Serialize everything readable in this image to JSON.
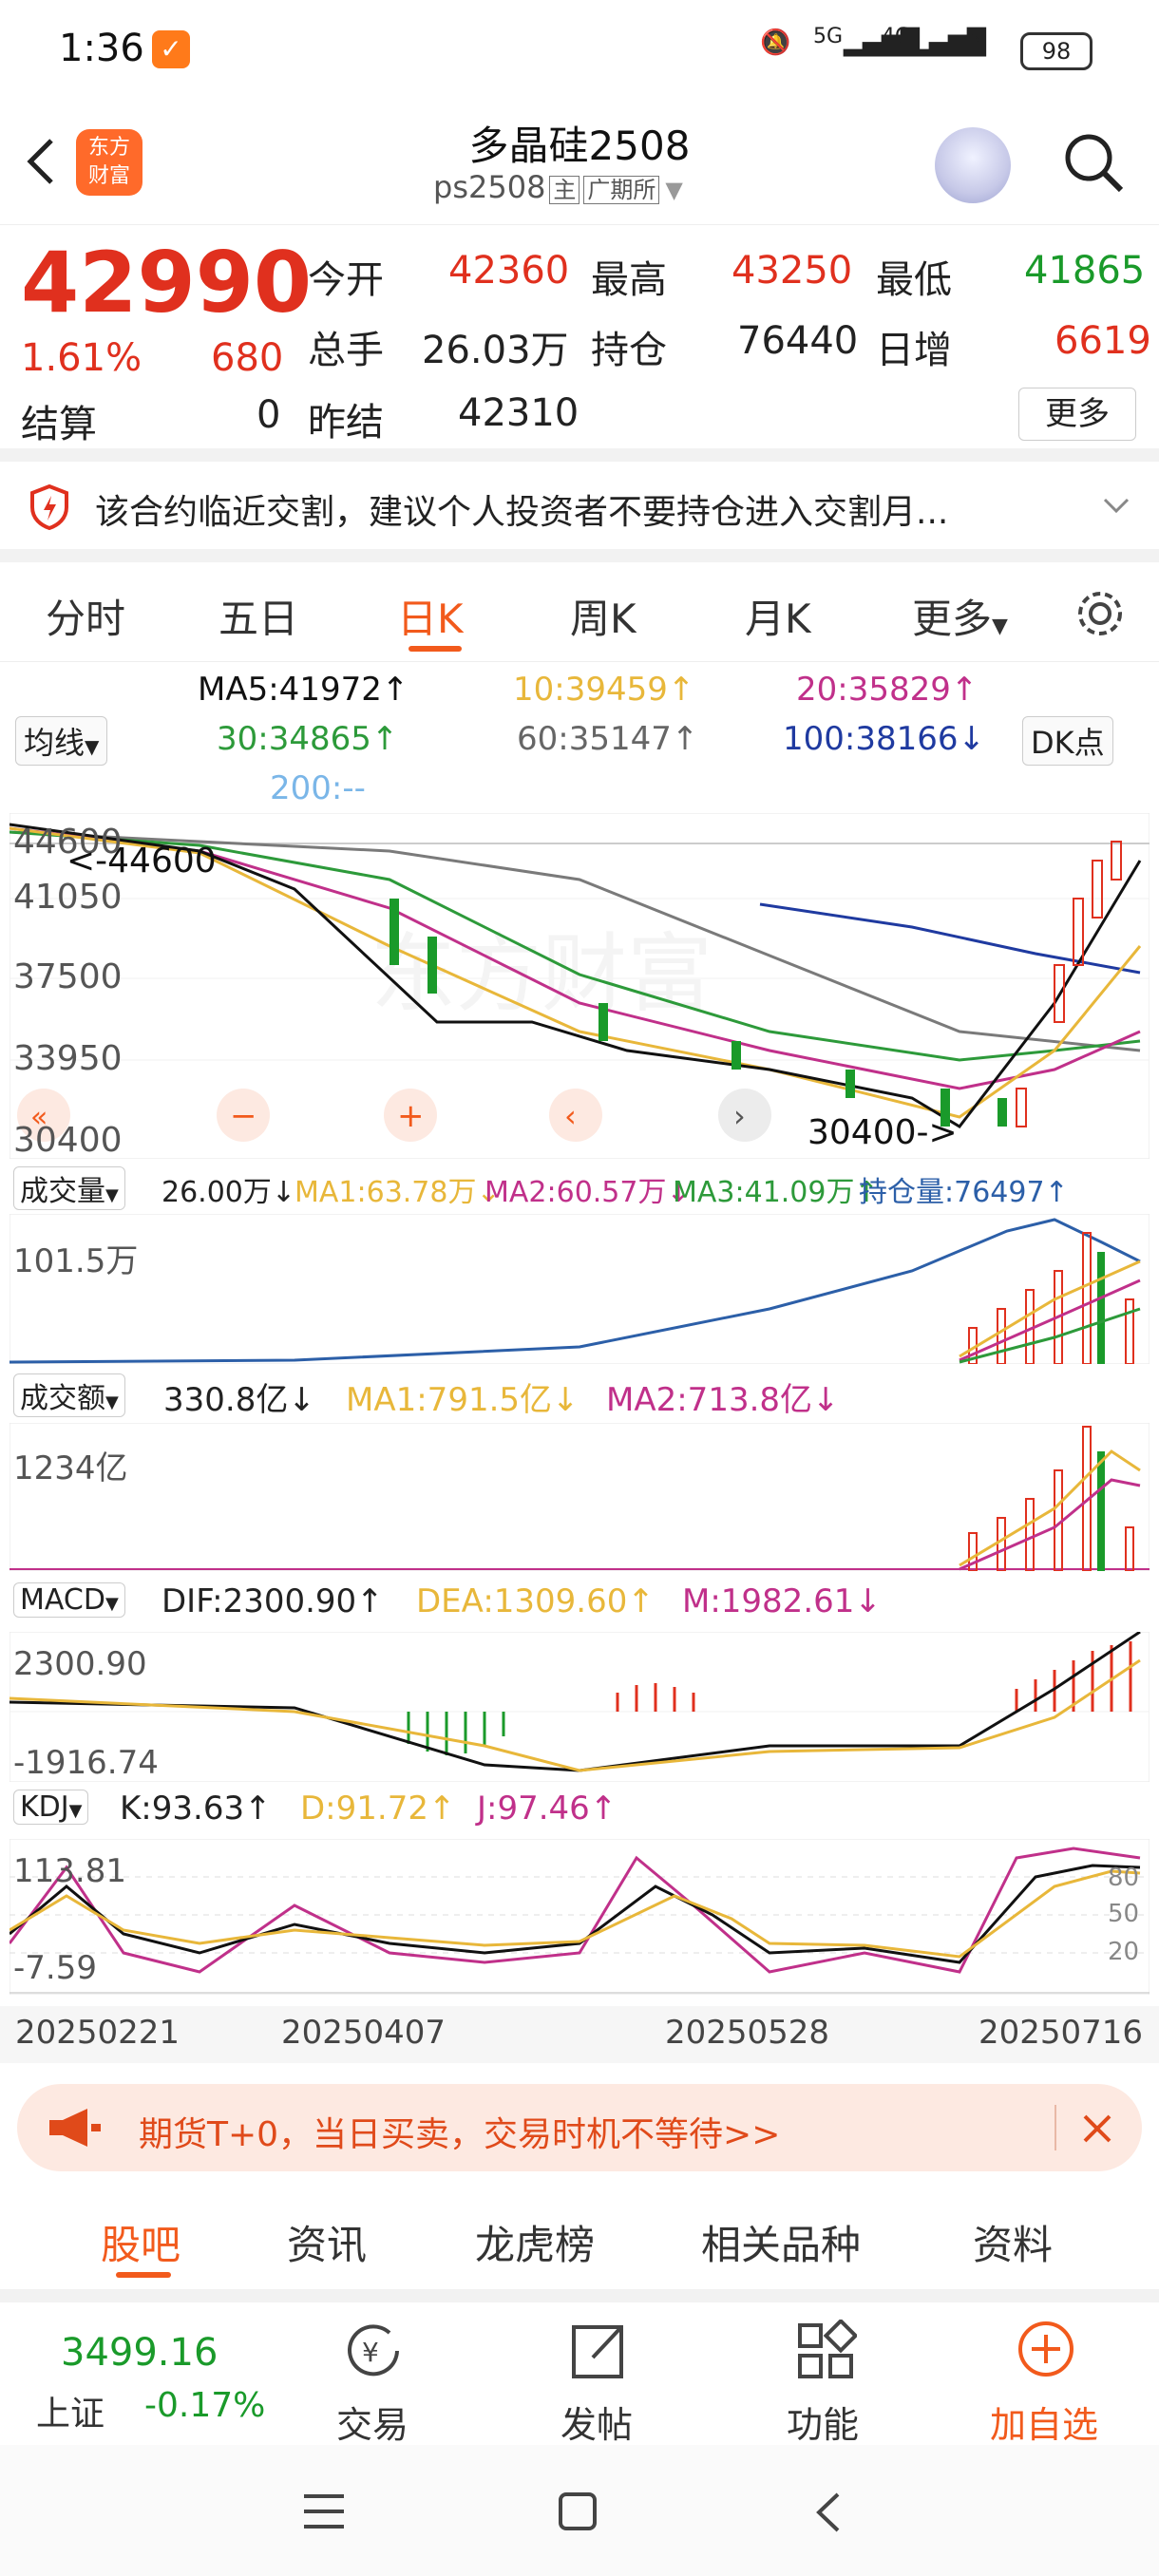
{
  "status_bar": {
    "time": "1:36",
    "net1": "5G",
    "net2": "4G",
    "battery": "98"
  },
  "header": {
    "title": "多晶硅2508",
    "code": "ps2508",
    "tag_main": "主",
    "tag_exchange": "广期所",
    "logo_line1": "东方",
    "logo_line2": "财富"
  },
  "quote": {
    "price": "42990",
    "change_pct": "1.61%",
    "change": "680",
    "open_label": "今开",
    "open": "42360",
    "high_label": "最高",
    "high": "43250",
    "low_label": "最低",
    "low": "41865",
    "vol_label": "总手",
    "vol": "26.03万",
    "oi_label": "持仓",
    "oi": "76440",
    "daily_label": "日增",
    "daily": "6619",
    "settle_label": "结算",
    "settle": "0",
    "prev_label": "昨结",
    "prev": "42310",
    "more": "更多"
  },
  "notice": {
    "text": "该合约临近交割，建议个人投资者不要持仓进入交割月..."
  },
  "tabs": [
    "分时",
    "五日",
    "日K",
    "周K",
    "月K",
    "更多"
  ],
  "active_tab": "日K",
  "ma": {
    "selector": "均线",
    "dk": "DK点",
    "ma5": "MA5:41972↑",
    "ma10": "10:39459↑",
    "ma20": "20:35829↑",
    "ma30": "30:34865↑",
    "ma60": "60:35147↑",
    "ma100": "100:38166↓",
    "ma200": "200:--"
  },
  "colors": {
    "up": "#e0301e",
    "down": "#1a9a2a",
    "accent": "#f25a1c",
    "ma5": "#111111",
    "ma10": "#e8b73a",
    "ma20": "#c0308a",
    "ma30": "#2d9a3a",
    "ma60": "#7a7a7a",
    "ma100": "#1f3aa0"
  },
  "kline": {
    "y_labels": [
      "44600",
      "41050",
      "37500",
      "33950",
      "30400"
    ],
    "high_mark": "<-44600",
    "low_mark": "30400->"
  },
  "volume": {
    "selector": "成交量",
    "value": "26.00万↓",
    "ma1": "MA1:63.78万↓",
    "ma2": "MA2:60.57万↓",
    "ma3": "MA3:41.09万↑",
    "oi": "持仓量:76497↑",
    "max": "101.5万"
  },
  "amount": {
    "selector": "成交额",
    "value": "330.8亿↓",
    "ma1": "MA1:791.5亿↓",
    "ma2": "MA2:713.8亿↓",
    "max": "1234亿"
  },
  "macd": {
    "selector": "MACD",
    "dif": "DIF:2300.90↑",
    "dea": "DEA:1309.60↑",
    "m": "M:1982.61↓",
    "top": "2300.90",
    "bottom": "-1916.74"
  },
  "kdj": {
    "selector": "KDJ",
    "k": "K:93.63↑",
    "d": "D:91.72↑",
    "j": "J:97.46↑",
    "top": "113.81",
    "bottom": "-7.59",
    "l80": "80",
    "l50": "50",
    "l20": "20"
  },
  "dates": [
    "20250221",
    "20250407",
    "20250528",
    "20250716"
  ],
  "promo": {
    "text": "期货T+0，当日买卖，交易时机不等待>>"
  },
  "bottom_tabs": [
    "股吧",
    "资讯",
    "龙虎榜",
    "相关品种",
    "资料"
  ],
  "toolbar": {
    "index_value": "3499.16",
    "index_name": "上证",
    "index_change": "-0.17%",
    "trade": "交易",
    "post": "发帖",
    "func": "功能",
    "add": "加自选"
  }
}
